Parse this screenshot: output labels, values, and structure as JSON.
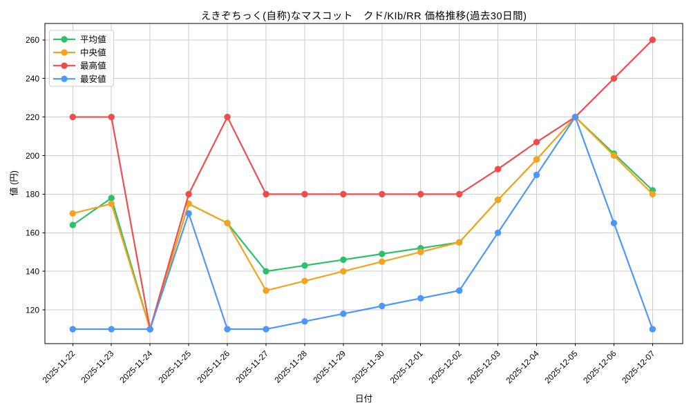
{
  "chart_data": {
    "type": "line",
    "title": "えきぞちっく(自称)なマスコット　クド/KIb/RR 価格推移(過去30日間)",
    "xlabel": "日付",
    "ylabel": "値 (円)",
    "x": [
      "2025-11-22",
      "2025-11-23",
      "2025-11-24",
      "2025-11-25",
      "2025-11-26",
      "2025-11-27",
      "2025-11-28",
      "2025-11-29",
      "2025-11-30",
      "2025-12-01",
      "2025-12-02",
      "2025-12-03",
      "2025-12-04",
      "2025-12-05",
      "2025-12-06",
      "2025-12-07"
    ],
    "series": [
      {
        "key": "average",
        "label": "平均値",
        "color": "#2bc169",
        "values": [
          164,
          178,
          110,
          175,
          165,
          140,
          143,
          146,
          149,
          152,
          155,
          177,
          198,
          220,
          201,
          182
        ]
      },
      {
        "key": "median",
        "label": "中央値",
        "color": "#f5a31c",
        "values": [
          170,
          175,
          110,
          175,
          165,
          130,
          135,
          140,
          145,
          150,
          155,
          177,
          198,
          220,
          200,
          180
        ]
      },
      {
        "key": "max",
        "label": "最高値",
        "color": "#f24b4b",
        "values": [
          220,
          220,
          110,
          180,
          220,
          180,
          180,
          180,
          180,
          180,
          180,
          193,
          207,
          220,
          240,
          260
        ]
      },
      {
        "key": "min",
        "label": "最安値",
        "color": "#4d96fa",
        "values": [
          110,
          110,
          110,
          170,
          110,
          110,
          114,
          118,
          122,
          126,
          130,
          160,
          190,
          220,
          165,
          110
        ]
      }
    ],
    "yticks": [
      120,
      140,
      160,
      180,
      200,
      220,
      240,
      260
    ],
    "ylim": [
      102.5,
      268.5
    ],
    "xlim": [
      -0.72,
      15.78
    ],
    "grid": true,
    "grid_color": "#cccccc",
    "background": "#ffffff",
    "legend_position": "upper-left",
    "x_tick_rotation_deg": 45
  }
}
